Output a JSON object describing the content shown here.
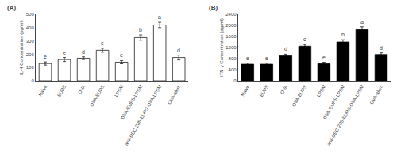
{
  "chart_data": [
    {
      "type": "bar",
      "title": "(A)",
      "ylabel": "IL-4 Concentration (pg/ml)",
      "categories": [
        "Naive",
        "EUPS",
        "OVA",
        "OVA-EUPS",
        "LPSM",
        "OVA-EUPS-LPSM",
        "anti-DEC-205-EUPS-OVA-LPSM",
        "OVA-alum"
      ],
      "values": [
        130,
        160,
        170,
        230,
        140,
        325,
        420,
        175
      ],
      "errors": [
        12,
        15,
        10,
        15,
        12,
        20,
        20,
        18
      ],
      "annotations": [
        "e",
        "e",
        "d",
        "c",
        "e",
        "b",
        "a",
        "d"
      ],
      "color": "#ffffff",
      "ylim": [
        0,
        500
      ],
      "yticks": [
        0,
        100,
        200,
        300,
        400,
        500
      ],
      "grid": false
    },
    {
      "type": "bar",
      "title": "(B)",
      "ylabel": "IFN-γ Concentration (pg/ml)",
      "categories": [
        "Naive",
        "EUPS",
        "OVA",
        "OVA-EUPS",
        "LPSM",
        "OVA-EUPS-LPSM",
        "anti-DEC-205-EUPS-OVA-LPSM",
        "OVA-alum"
      ],
      "values": [
        600,
        600,
        900,
        1250,
        620,
        1400,
        1850,
        950
      ],
      "errors": [
        40,
        40,
        60,
        60,
        50,
        80,
        100,
        60
      ],
      "annotations": [
        "e",
        "e",
        "d",
        "c",
        "e",
        "b",
        "a",
        "d"
      ],
      "color": "#000000",
      "ylim": [
        0,
        2400
      ],
      "yticks": [
        0,
        400,
        800,
        1200,
        1600,
        2000,
        2400
      ],
      "grid": false
    }
  ]
}
